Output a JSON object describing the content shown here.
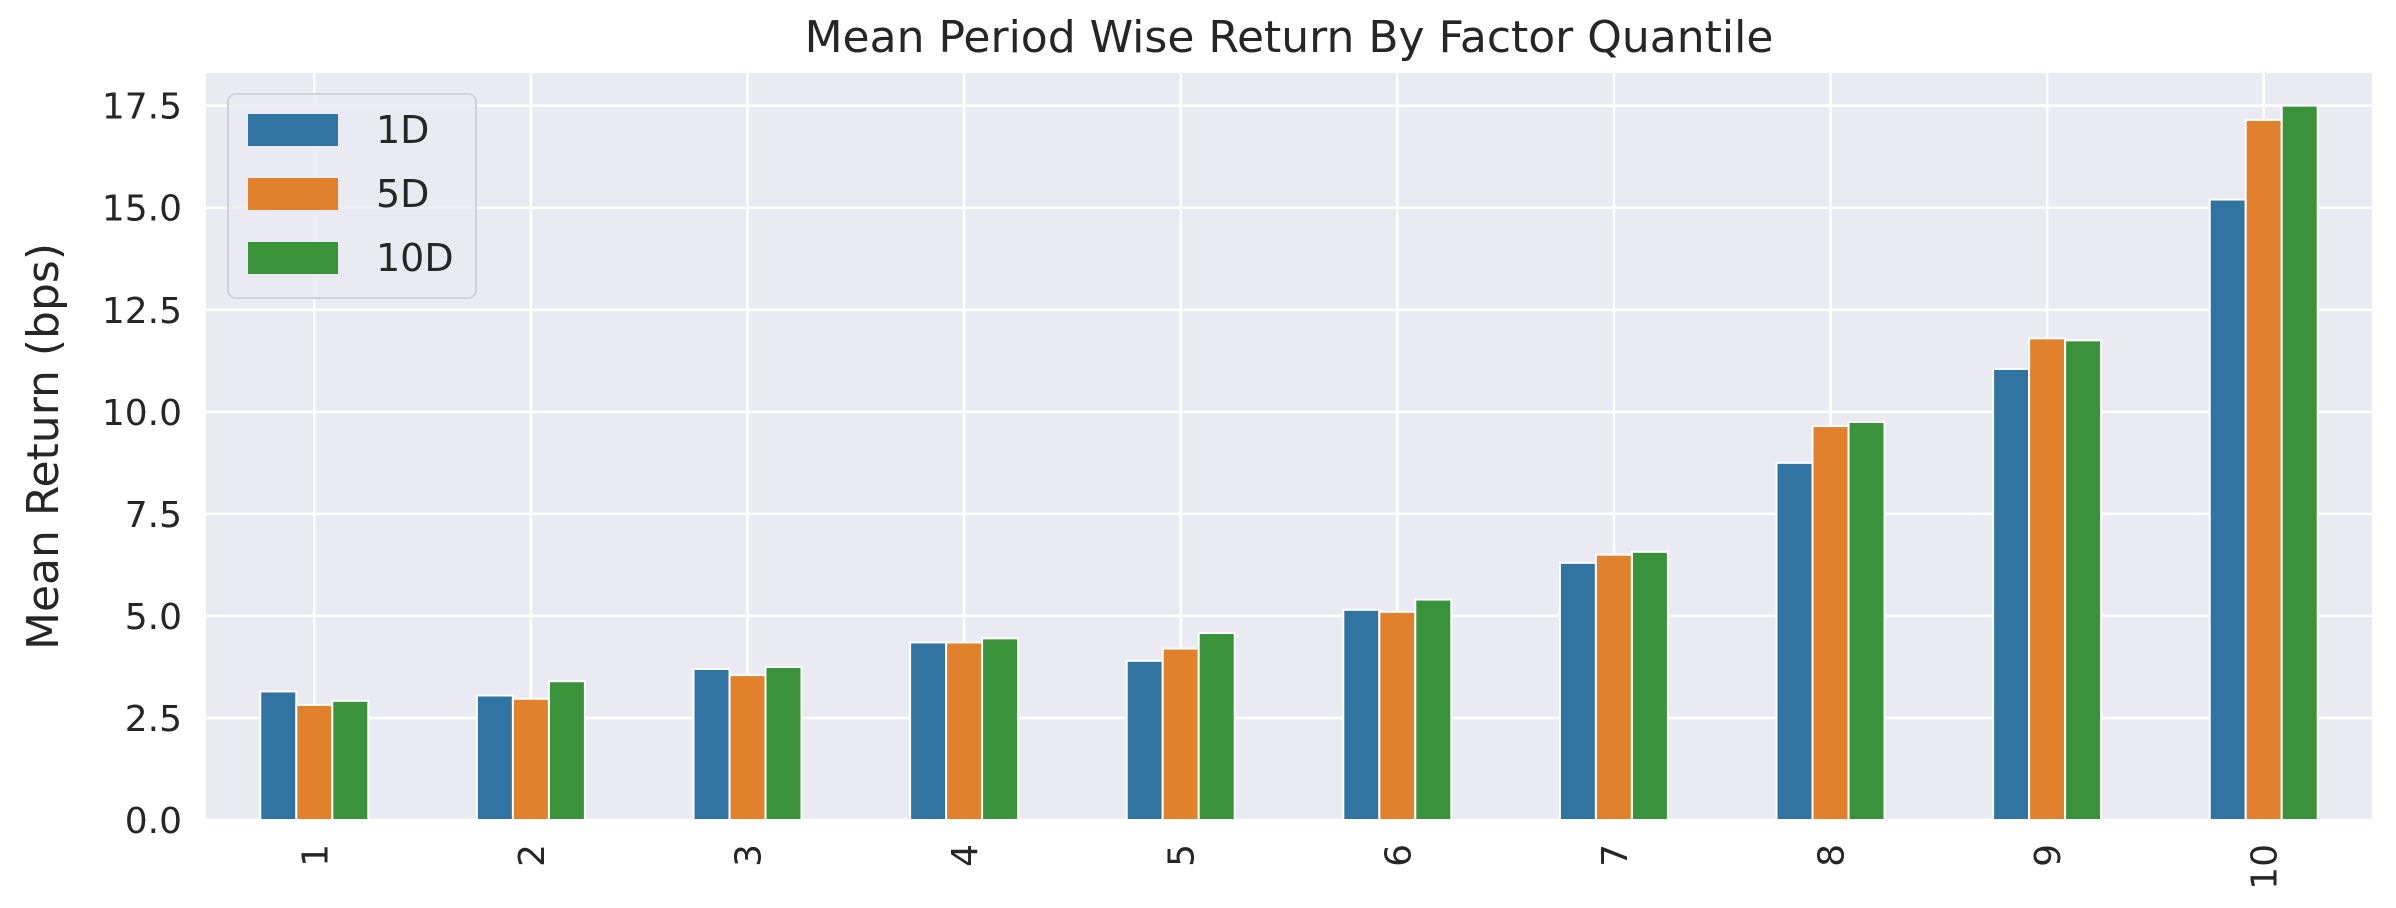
{
  "chart_data": {
    "type": "bar",
    "title": "Mean Period Wise Return By Factor Quantile",
    "xlabel": "",
    "ylabel": "Mean Return (bps)",
    "categories": [
      "1",
      "2",
      "3",
      "4",
      "5",
      "6",
      "7",
      "8",
      "9",
      "10"
    ],
    "series": [
      {
        "name": "1D",
        "color": "#3274a1",
        "values": [
          3.15,
          3.05,
          3.7,
          4.35,
          3.9,
          5.15,
          6.3,
          8.75,
          11.05,
          15.2
        ]
      },
      {
        "name": "5D",
        "color": "#e1812c",
        "values": [
          2.82,
          2.97,
          3.55,
          4.35,
          4.2,
          5.1,
          6.5,
          9.65,
          11.8,
          17.15
        ]
      },
      {
        "name": "10D",
        "color": "#3a923a",
        "values": [
          2.92,
          3.4,
          3.75,
          4.45,
          4.58,
          5.4,
          6.57,
          9.75,
          11.75,
          17.5
        ]
      }
    ],
    "yticks": [
      "0.0",
      "2.5",
      "5.0",
      "7.5",
      "10.0",
      "12.5",
      "15.0",
      "17.5"
    ],
    "ylim": [
      0,
      18.3
    ],
    "grid": true,
    "legend_position": "top-left",
    "background": "#eaeaf2"
  }
}
